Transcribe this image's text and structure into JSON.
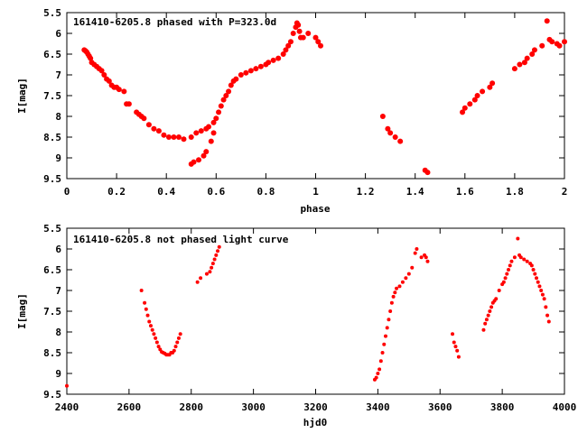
{
  "colors": {
    "marker": "#ff0000",
    "frame": "#000000",
    "background": "#ffffff"
  },
  "chart_data": [
    {
      "type": "scatter",
      "title": "161410-6205.8 phased with P=323.0d",
      "xlabel": "phase",
      "ylabel": "I[mag]",
      "xlim": [
        0,
        2
      ],
      "ylim": [
        5.5,
        9.5
      ],
      "y_inverted": true,
      "grid": false,
      "xticks": [
        "0",
        "0.2",
        "0.4",
        "0.6",
        "0.8",
        "1",
        "1.2",
        "1.4",
        "1.6",
        "1.8",
        "2"
      ],
      "yticks": [
        "5.5",
        "6",
        "6.5",
        "7",
        "7.5",
        "8",
        "8.5",
        "9",
        "9.5"
      ],
      "series": [
        {
          "marker_size": 3,
          "x": [
            0.07,
            0.075,
            0.08,
            0.085,
            0.09,
            0.095,
            0.1,
            0.11,
            0.12,
            0.13,
            0.14,
            0.15,
            0.16,
            0.17,
            0.18,
            0.19,
            0.2,
            0.21,
            0.23,
            0.24,
            0.25,
            0.28,
            0.29,
            0.3,
            0.31,
            0.33,
            0.35,
            0.37,
            0.39,
            0.41,
            0.43,
            0.45,
            0.47,
            0.5,
            0.52,
            0.54,
            0.56,
            0.57,
            0.59,
            0.6,
            0.61,
            0.62,
            0.63,
            0.64,
            0.65,
            0.66,
            0.67,
            0.68,
            0.7,
            0.72,
            0.74,
            0.76,
            0.78,
            0.8,
            0.81,
            0.83,
            0.85,
            0.87,
            0.88,
            0.89,
            0.9,
            0.91,
            0.92,
            0.925,
            0.93,
            0.935,
            0.94,
            0.95,
            0.97,
            1.0,
            1.01,
            1.02,
            0.5,
            0.51,
            0.53,
            0.55,
            0.56,
            0.58,
            0.59,
            1.27,
            1.29,
            1.3,
            1.32,
            1.34,
            1.44,
            1.45,
            1.59,
            1.6,
            1.62,
            1.64,
            1.65,
            1.67,
            1.7,
            1.71,
            1.8,
            1.82,
            1.84,
            1.85,
            1.87,
            1.88,
            1.91,
            1.93,
            1.94,
            1.95,
            1.97,
            1.98,
            2.0
          ],
          "y": [
            6.4,
            6.42,
            6.45,
            6.5,
            6.55,
            6.6,
            6.7,
            6.75,
            6.8,
            6.85,
            6.9,
            7.0,
            7.1,
            7.15,
            7.25,
            7.3,
            7.3,
            7.35,
            7.4,
            7.7,
            7.7,
            7.9,
            7.95,
            8.0,
            8.05,
            8.2,
            8.3,
            8.35,
            8.45,
            8.5,
            8.5,
            8.5,
            8.55,
            8.5,
            8.4,
            8.35,
            8.3,
            8.25,
            8.15,
            8.05,
            7.9,
            7.75,
            7.6,
            7.5,
            7.4,
            7.25,
            7.15,
            7.1,
            7.0,
            6.95,
            6.9,
            6.85,
            6.8,
            6.75,
            6.7,
            6.65,
            6.6,
            6.5,
            6.4,
            6.3,
            6.2,
            6.0,
            5.85,
            5.75,
            5.8,
            5.95,
            6.1,
            6.1,
            6.0,
            6.1,
            6.2,
            6.3,
            9.15,
            9.1,
            9.05,
            8.95,
            8.85,
            8.6,
            8.4,
            8.0,
            8.3,
            8.4,
            8.5,
            8.6,
            9.3,
            9.35,
            7.9,
            7.8,
            7.7,
            7.6,
            7.5,
            7.4,
            7.3,
            7.2,
            6.85,
            6.75,
            6.7,
            6.6,
            6.5,
            6.4,
            6.3,
            5.7,
            6.15,
            6.2,
            6.25,
            6.3,
            6.2
          ]
        }
      ]
    },
    {
      "type": "scatter",
      "title": "161410-6205.8 not phased light curve",
      "xlabel": "hjd0",
      "ylabel": "I[mag]",
      "xlim": [
        2400,
        4000
      ],
      "ylim": [
        5.5,
        9.5
      ],
      "y_inverted": true,
      "grid": false,
      "xticks": [
        "2400",
        "2600",
        "2800",
        "3000",
        "3200",
        "3400",
        "3600",
        "3800",
        "4000"
      ],
      "yticks": [
        "5.5",
        "6",
        "6.5",
        "7",
        "7.5",
        "8",
        "8.5",
        "9",
        "9.5"
      ],
      "series": [
        {
          "marker_size": 2,
          "x": [
            2400,
            2640,
            2650,
            2655,
            2660,
            2665,
            2670,
            2675,
            2680,
            2685,
            2690,
            2695,
            2700,
            2705,
            2710,
            2715,
            2720,
            2725,
            2730,
            2735,
            2740,
            2745,
            2750,
            2755,
            2760,
            2765,
            2820,
            2830,
            2850,
            2860,
            2865,
            2870,
            2875,
            2880,
            2885,
            2890,
            3390,
            3395,
            3400,
            3405,
            3410,
            3415,
            3420,
            3425,
            3430,
            3435,
            3440,
            3445,
            3450,
            3455,
            3460,
            3470,
            3480,
            3490,
            3500,
            3510,
            3520,
            3525,
            3540,
            3550,
            3555,
            3560,
            3640,
            3645,
            3650,
            3655,
            3660,
            3740,
            3745,
            3750,
            3755,
            3760,
            3765,
            3770,
            3775,
            3780,
            3790,
            3800,
            3805,
            3810,
            3815,
            3820,
            3825,
            3830,
            3840,
            3850,
            3855,
            3860,
            3870,
            3880,
            3890,
            3895,
            3900,
            3905,
            3910,
            3915,
            3920,
            3925,
            3930,
            3935,
            3940,
            3945,
            3950
          ],
          "y": [
            9.3,
            7.0,
            7.3,
            7.45,
            7.6,
            7.75,
            7.85,
            7.95,
            8.05,
            8.15,
            8.25,
            8.35,
            8.42,
            8.48,
            8.5,
            8.52,
            8.55,
            8.55,
            8.55,
            8.5,
            8.5,
            8.45,
            8.35,
            8.25,
            8.15,
            8.05,
            6.8,
            6.7,
            6.6,
            6.55,
            6.45,
            6.35,
            6.25,
            6.15,
            6.05,
            5.95,
            9.15,
            9.1,
            9.0,
            8.9,
            8.7,
            8.5,
            8.3,
            8.1,
            7.9,
            7.7,
            7.5,
            7.3,
            7.15,
            7.05,
            6.95,
            6.9,
            6.8,
            6.7,
            6.6,
            6.45,
            6.1,
            6.0,
            6.2,
            6.15,
            6.2,
            6.3,
            8.05,
            8.25,
            8.35,
            8.45,
            8.6,
            7.95,
            7.8,
            7.7,
            7.6,
            7.5,
            7.4,
            7.3,
            7.25,
            7.2,
            7.0,
            6.85,
            6.8,
            6.7,
            6.6,
            6.5,
            6.4,
            6.3,
            6.2,
            5.75,
            6.15,
            6.2,
            6.25,
            6.3,
            6.35,
            6.4,
            6.5,
            6.6,
            6.7,
            6.8,
            6.9,
            7.0,
            7.1,
            7.2,
            7.4,
            7.6,
            7.75
          ]
        }
      ]
    }
  ]
}
